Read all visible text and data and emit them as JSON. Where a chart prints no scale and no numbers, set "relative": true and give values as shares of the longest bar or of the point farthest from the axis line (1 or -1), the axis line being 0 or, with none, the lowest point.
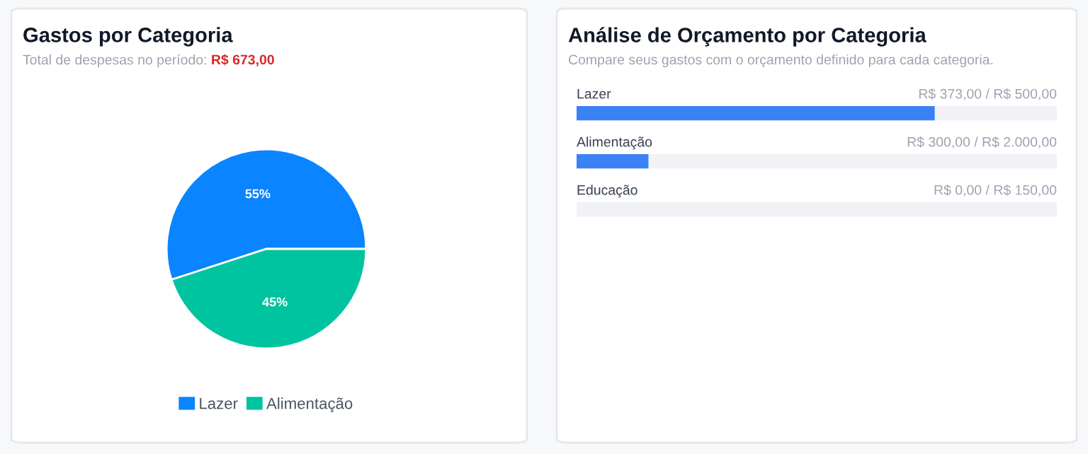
{
  "chart_data": [
    {
      "type": "pie",
      "title": "Gastos por Categoria",
      "subtitle": "Total de despesas no período:",
      "annotations": [
        "R$ 673,00"
      ],
      "categories": [
        "Lazer",
        "Alimentação"
      ],
      "values": [
        55,
        45
      ],
      "colors": [
        "#0a84ff",
        "#00c49f"
      ],
      "value_labels": [
        "55%",
        "45%"
      ],
      "legend": "bottom"
    },
    {
      "type": "bar",
      "title": "Análise de Orçamento por Categoria",
      "subtitle": "Compare seus gastos com o orçamento definido para cada categoria.",
      "orientation": "horizontal",
      "stacked": true,
      "relative": true,
      "categories": [
        "Lazer",
        "Alimentação",
        "Educação"
      ],
      "series": [
        {
          "color": "#3b82f6",
          "values": [
            0.746,
            0.15,
            0
          ]
        },
        {
          "color": "#f1f2f6",
          "values": [
            0.254,
            0.85,
            1
          ]
        }
      ],
      "value_labels": [
        "R$ 373,00 / R$ 500,00",
        "R$ 300,00 / R$ 2.000,00",
        "R$ 0,00 / R$ 150,00"
      ]
    }
  ]
}
